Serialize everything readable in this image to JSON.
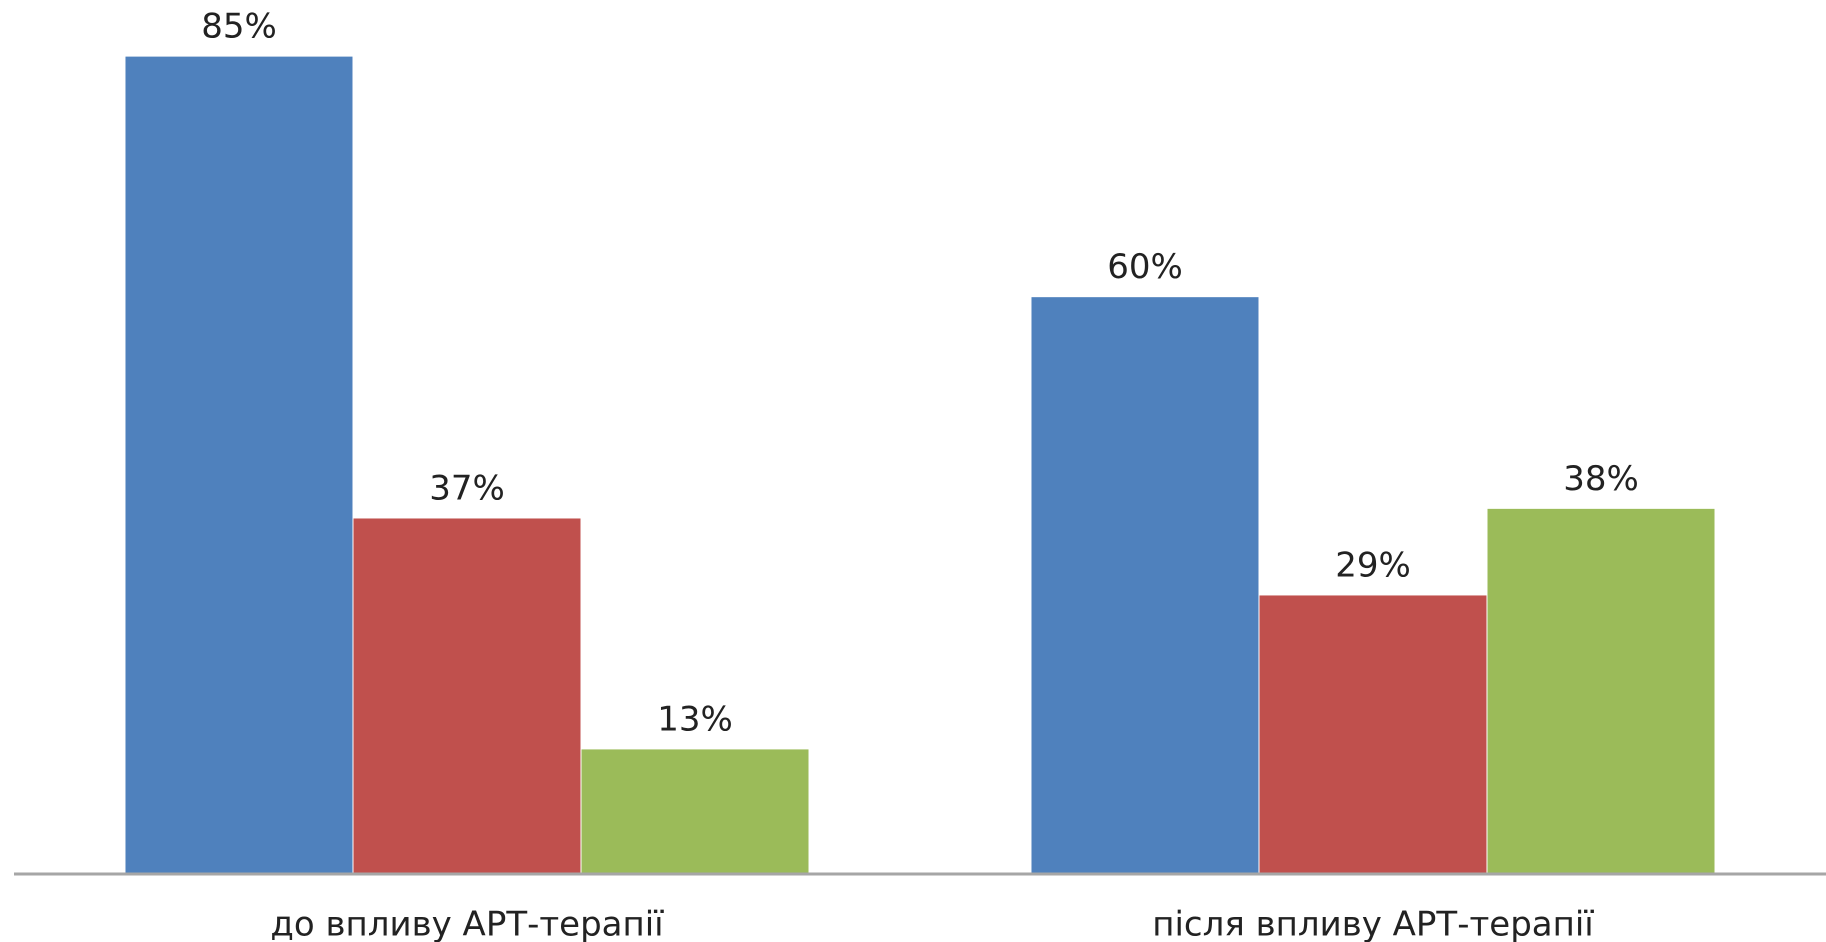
{
  "chart_data": {
    "type": "bar",
    "categories": [
      "до впливу АРТ-терапії",
      "після впливу АРТ-терапії"
    ],
    "series": [
      {
        "color": "#4f81bd",
        "values": [
          85,
          60
        ],
        "value_labels": [
          "85%",
          "60%"
        ]
      },
      {
        "color": "#c0504d",
        "values": [
          37,
          29
        ],
        "value_labels": [
          "37%",
          "29%"
        ]
      },
      {
        "color": "#9bbb59",
        "values": [
          13,
          38
        ],
        "value_labels": [
          "13%",
          "38%"
        ]
      }
    ],
    "ylim": [
      0,
      90
    ]
  }
}
